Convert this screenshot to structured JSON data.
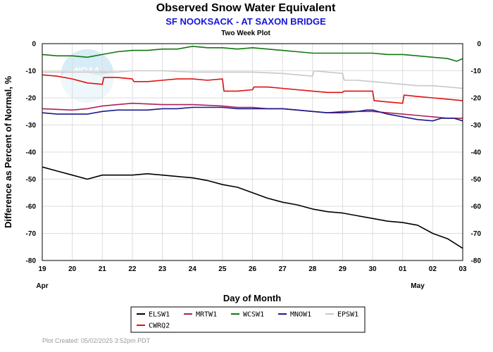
{
  "chart_data": {
    "type": "line",
    "title": "Observed Snow Water Equivalent",
    "subtitle": "SF NOOKSACK - AT SAXON BRIDGE",
    "subtitle2": "Two Week Plot",
    "xlabel": "Day of Month",
    "ylabel": "Difference as Percent of Normal, %",
    "ylim": [
      -80,
      0
    ],
    "xlim": [
      19,
      33
    ],
    "yticks": [
      0,
      -10,
      -20,
      -30,
      -40,
      -50,
      -60,
      -70,
      -80
    ],
    "xtick_labels": [
      "19",
      "20",
      "21",
      "22",
      "23",
      "24",
      "25",
      "26",
      "27",
      "28",
      "29",
      "30",
      "01",
      "02",
      "03"
    ],
    "month_labels": [
      {
        "label": "Apr",
        "x": 19
      },
      {
        "label": "May",
        "x": 31.5
      }
    ],
    "grid": true,
    "legend_position": "bottom",
    "footer": "Plot Created:  05/02/2025 3:52pm PDT",
    "series": [
      {
        "name": "ELSW1",
        "color": "#000000",
        "points": [
          [
            19,
            -45.5
          ],
          [
            19.5,
            -47
          ],
          [
            20,
            -48.5
          ],
          [
            20.5,
            -50
          ],
          [
            21,
            -48.5
          ],
          [
            21.5,
            -48.5
          ],
          [
            22,
            -48.5
          ],
          [
            22.5,
            -48
          ],
          [
            23,
            -48.5
          ],
          [
            23.5,
            -49
          ],
          [
            24,
            -49.5
          ],
          [
            24.5,
            -50.5
          ],
          [
            25,
            -52
          ],
          [
            25.5,
            -53
          ],
          [
            26,
            -55
          ],
          [
            26.5,
            -57
          ],
          [
            27,
            -58.5
          ],
          [
            27.5,
            -59.5
          ],
          [
            28,
            -61
          ],
          [
            28.5,
            -62
          ],
          [
            29,
            -62.5
          ],
          [
            29.5,
            -63.5
          ],
          [
            30,
            -64.5
          ],
          [
            30.5,
            -65.5
          ],
          [
            31,
            -66
          ],
          [
            31.5,
            -67
          ],
          [
            32,
            -70
          ],
          [
            32.5,
            -72
          ],
          [
            33,
            -75.5
          ]
        ]
      },
      {
        "name": "MRTW1",
        "color": "#b01f5a",
        "points": [
          [
            19,
            -24
          ],
          [
            20,
            -24.5
          ],
          [
            20.5,
            -24
          ],
          [
            21,
            -23
          ],
          [
            21.5,
            -22.5
          ],
          [
            22,
            -22
          ],
          [
            23,
            -22.5
          ],
          [
            24,
            -22.5
          ],
          [
            25,
            -23
          ],
          [
            25.5,
            -23.5
          ],
          [
            26,
            -23.5
          ],
          [
            26.5,
            -24
          ],
          [
            27,
            -24
          ],
          [
            28,
            -25
          ],
          [
            28.5,
            -25.5
          ],
          [
            29,
            -25
          ],
          [
            29.5,
            -25
          ],
          [
            30,
            -25
          ],
          [
            30.5,
            -25.5
          ],
          [
            31,
            -26
          ],
          [
            31.5,
            -26.5
          ],
          [
            32,
            -27
          ],
          [
            32.5,
            -27.5
          ],
          [
            33,
            -27.5
          ]
        ]
      },
      {
        "name": "WCSW1",
        "color": "#117711",
        "points": [
          [
            19,
            -4
          ],
          [
            19.5,
            -4.5
          ],
          [
            20,
            -4.5
          ],
          [
            20.5,
            -5
          ],
          [
            21,
            -4
          ],
          [
            21.5,
            -3
          ],
          [
            22,
            -2.5
          ],
          [
            22.5,
            -2.5
          ],
          [
            23,
            -2
          ],
          [
            23.5,
            -2
          ],
          [
            24,
            -1
          ],
          [
            24.5,
            -1.5
          ],
          [
            25,
            -1.5
          ],
          [
            25.5,
            -2
          ],
          [
            26,
            -1.5
          ],
          [
            26.5,
            -2
          ],
          [
            27,
            -2.5
          ],
          [
            27.5,
            -3
          ],
          [
            28,
            -3.5
          ],
          [
            28.5,
            -3.5
          ],
          [
            29,
            -3.5
          ],
          [
            29.5,
            -3.5
          ],
          [
            30,
            -3.5
          ],
          [
            30.5,
            -4
          ],
          [
            31,
            -4
          ],
          [
            31.5,
            -4.5
          ],
          [
            32,
            -5
          ],
          [
            32.5,
            -5.5
          ],
          [
            32.8,
            -6.5
          ],
          [
            33,
            -5.5
          ]
        ]
      },
      {
        "name": "MNOW1",
        "color": "#1a1a8c",
        "points": [
          [
            19,
            -25.5
          ],
          [
            19.5,
            -26
          ],
          [
            20,
            -26
          ],
          [
            20.5,
            -26
          ],
          [
            21,
            -25
          ],
          [
            21.5,
            -24.5
          ],
          [
            22,
            -24.5
          ],
          [
            22.5,
            -24.5
          ],
          [
            23,
            -24
          ],
          [
            23.5,
            -24
          ],
          [
            24,
            -23.5
          ],
          [
            24.5,
            -23.5
          ],
          [
            25,
            -23.5
          ],
          [
            25.5,
            -24
          ],
          [
            26,
            -24
          ],
          [
            26.5,
            -24
          ],
          [
            27,
            -24
          ],
          [
            27.5,
            -24.5
          ],
          [
            28,
            -25
          ],
          [
            28.5,
            -25.5
          ],
          [
            29,
            -25.5
          ],
          [
            29.5,
            -25
          ],
          [
            29.8,
            -24.5
          ],
          [
            30,
            -24.5
          ],
          [
            30.5,
            -26
          ],
          [
            31,
            -27
          ],
          [
            31.5,
            -28
          ],
          [
            32,
            -28.5
          ],
          [
            32.3,
            -27.5
          ],
          [
            32.7,
            -27.5
          ],
          [
            33,
            -28.5
          ]
        ]
      },
      {
        "name": "EPSW1",
        "color": "#c8c8c8",
        "points": [
          [
            19,
            -10.5
          ],
          [
            19.5,
            -10.5
          ],
          [
            20,
            -10.5
          ],
          [
            20.5,
            -10.5
          ],
          [
            21,
            -10.5
          ],
          [
            21.5,
            -10.5
          ],
          [
            22,
            -10
          ],
          [
            23,
            -10
          ],
          [
            24,
            -10.5
          ],
          [
            25,
            -10.5
          ],
          [
            26,
            -10.5
          ],
          [
            27,
            -11
          ],
          [
            27.5,
            -11.5
          ],
          [
            28,
            -12
          ],
          [
            28.05,
            -10
          ],
          [
            28.5,
            -10.5
          ],
          [
            29,
            -11
          ],
          [
            29.05,
            -13.5
          ],
          [
            29.5,
            -13.5
          ],
          [
            30,
            -14
          ],
          [
            30.5,
            -14.5
          ],
          [
            31,
            -15
          ],
          [
            31.5,
            -15.5
          ],
          [
            32,
            -15.5
          ],
          [
            32.5,
            -16
          ],
          [
            33,
            -16.5
          ]
        ]
      },
      {
        "name": "CWRQ2",
        "color": "#e01010",
        "points": [
          [
            19,
            -11.5
          ],
          [
            19.5,
            -12
          ],
          [
            20,
            -13
          ],
          [
            20.5,
            -14.5
          ],
          [
            21,
            -15
          ],
          [
            21.05,
            -12.5
          ],
          [
            21.5,
            -12.5
          ],
          [
            22,
            -13
          ],
          [
            22.05,
            -14
          ],
          [
            22.5,
            -14
          ],
          [
            23,
            -13.5
          ],
          [
            23.5,
            -13
          ],
          [
            24,
            -13
          ],
          [
            24.5,
            -13.5
          ],
          [
            25,
            -13
          ],
          [
            25.05,
            -17.5
          ],
          [
            25.5,
            -17.5
          ],
          [
            26,
            -17
          ],
          [
            26.05,
            -16
          ],
          [
            26.5,
            -16
          ],
          [
            27,
            -16.5
          ],
          [
            27.5,
            -17
          ],
          [
            28,
            -17.5
          ],
          [
            28.5,
            -18
          ],
          [
            29,
            -18
          ],
          [
            29.05,
            -17.5
          ],
          [
            29.5,
            -17.5
          ],
          [
            30,
            -17.5
          ],
          [
            30.05,
            -21
          ],
          [
            30.5,
            -21.5
          ],
          [
            31,
            -22
          ],
          [
            31.05,
            -19
          ],
          [
            31.5,
            -19.5
          ],
          [
            32,
            -20
          ],
          [
            32.5,
            -20.5
          ],
          [
            33,
            -21
          ]
        ]
      }
    ]
  }
}
